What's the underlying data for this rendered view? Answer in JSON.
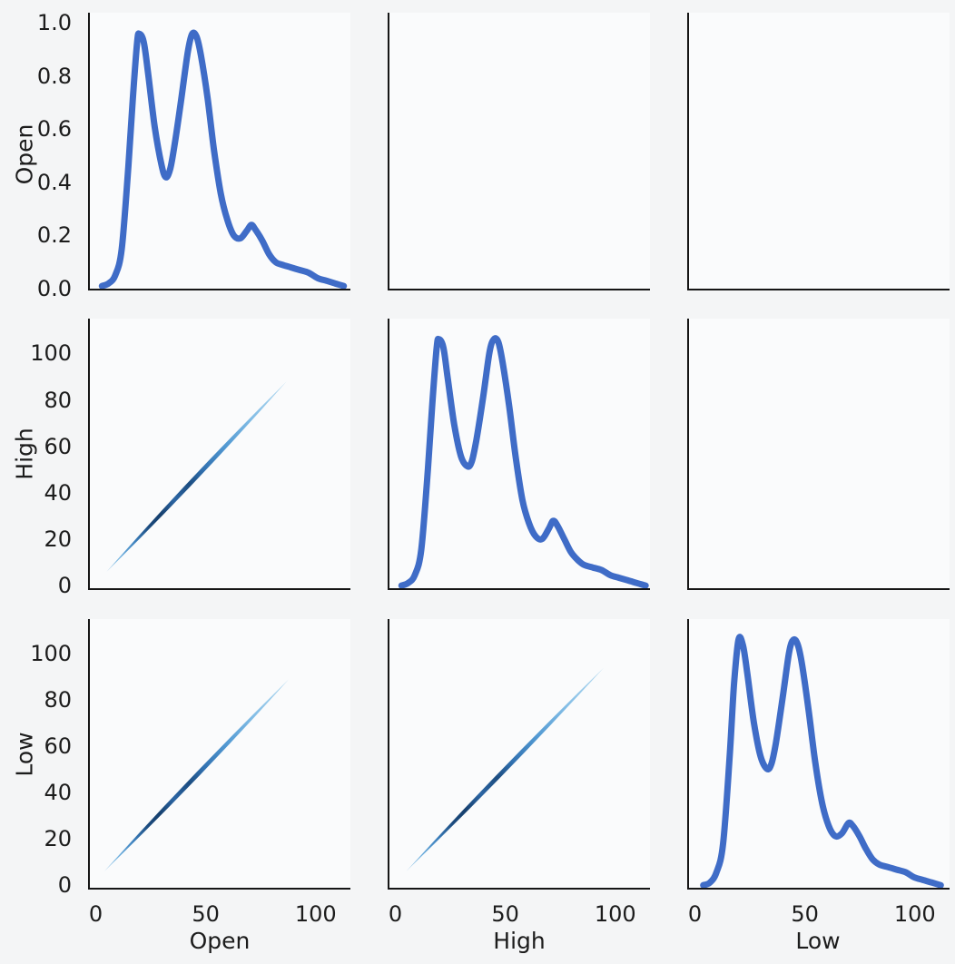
{
  "chart_data": {
    "type": "pairgrid",
    "title": "",
    "variables": [
      "Open",
      "High",
      "Low"
    ],
    "row_labels": [
      "Open",
      "High",
      "Low"
    ],
    "col_labels": [
      "Open",
      "High",
      "Low"
    ],
    "layout": {
      "rows": 3,
      "cols": 3,
      "diagonal": "kde",
      "lower_triangle": "bivariate-kde-line",
      "upper_triangle": "empty",
      "grid": "off",
      "legend": "none",
      "spines": [
        "left",
        "bottom"
      ]
    },
    "axes": {
      "xlim": [
        -2.5,
        116
      ],
      "value_ylim": [
        -2,
        114
      ],
      "density_ylim": [
        -0.01,
        1.03
      ],
      "x_ticks": [
        0,
        50,
        100
      ],
      "x_tick_labels": [
        "0",
        "50",
        "100"
      ],
      "value_y_ticks": [
        0,
        20,
        40,
        60,
        80,
        100
      ],
      "value_y_tick_labels": [
        "0",
        "20",
        "40",
        "60",
        "80",
        "100"
      ],
      "density_y_ticks": [
        0.0,
        0.2,
        0.4,
        0.6,
        0.8,
        1.0
      ],
      "density_y_tick_labels": [
        "0.0",
        "0.2",
        "0.4",
        "0.6",
        "0.8",
        "1.0"
      ]
    },
    "colors": {
      "kde_line": "#3f6cc7",
      "spine": "#161616",
      "text": "#1c1c1c",
      "figure_background": "#f4f5f6",
      "axes_background": "#fafbfc",
      "kde2d_gradient": [
        [
          0.0,
          "#add4ed"
        ],
        [
          0.08,
          "#6fb0de"
        ],
        [
          0.16,
          "#3c80bd"
        ],
        [
          0.24,
          "#1b4a7d"
        ],
        [
          0.3,
          "#16406e"
        ],
        [
          0.38,
          "#2c66a4"
        ],
        [
          0.46,
          "#1c4d81"
        ],
        [
          0.54,
          "#3272b1"
        ],
        [
          0.66,
          "#5299d2"
        ],
        [
          0.8,
          "#81bce5"
        ],
        [
          1.0,
          "#b8dcf1"
        ]
      ]
    },
    "kde_curves": {
      "Open": {
        "x": [
          3,
          6,
          9,
          12,
          15,
          17,
          19,
          20,
          22,
          24,
          27,
          30,
          32,
          34,
          36,
          39,
          42,
          44,
          46,
          48,
          51,
          54,
          57,
          60,
          63,
          66,
          69,
          71,
          73,
          76,
          79,
          82,
          85,
          89,
          93,
          97,
          101,
          105,
          109,
          113
        ],
        "density": [
          0,
          0.01,
          0.04,
          0.14,
          0.45,
          0.7,
          0.92,
          0.95,
          0.92,
          0.8,
          0.6,
          0.46,
          0.41,
          0.44,
          0.53,
          0.7,
          0.88,
          0.95,
          0.94,
          0.87,
          0.71,
          0.51,
          0.35,
          0.25,
          0.19,
          0.18,
          0.21,
          0.23,
          0.21,
          0.17,
          0.12,
          0.09,
          0.08,
          0.07,
          0.06,
          0.05,
          0.03,
          0.02,
          0.01,
          0
        ]
      },
      "High": {
        "x": [
          3,
          6,
          9,
          12,
          15,
          17,
          19,
          20,
          22,
          24,
          27,
          30,
          33,
          35,
          37,
          40,
          43,
          45,
          47,
          49,
          52,
          55,
          58,
          61,
          64,
          67,
          70,
          72,
          74,
          77,
          80,
          83,
          86,
          90,
          94,
          98,
          102,
          106,
          110,
          114
        ],
        "density": [
          0,
          0.01,
          0.04,
          0.14,
          0.45,
          0.7,
          0.92,
          0.95,
          0.92,
          0.8,
          0.62,
          0.5,
          0.46,
          0.48,
          0.56,
          0.72,
          0.9,
          0.95,
          0.94,
          0.86,
          0.69,
          0.49,
          0.33,
          0.24,
          0.19,
          0.18,
          0.22,
          0.25,
          0.23,
          0.18,
          0.13,
          0.1,
          0.08,
          0.07,
          0.06,
          0.04,
          0.03,
          0.02,
          0.01,
          0
        ]
      },
      "Low": {
        "x": [
          4,
          7,
          10,
          13,
          16,
          18,
          20,
          22,
          24,
          27,
          30,
          33,
          35,
          37,
          40,
          43,
          45,
          47,
          49,
          52,
          55,
          58,
          61,
          64,
          67,
          70,
          72,
          75,
          78,
          81,
          84,
          88,
          92,
          96,
          100,
          104,
          108,
          112
        ],
        "density": [
          0,
          0.01,
          0.05,
          0.16,
          0.5,
          0.78,
          0.95,
          0.93,
          0.82,
          0.63,
          0.5,
          0.45,
          0.47,
          0.55,
          0.72,
          0.9,
          0.95,
          0.93,
          0.85,
          0.67,
          0.47,
          0.32,
          0.23,
          0.19,
          0.2,
          0.24,
          0.23,
          0.19,
          0.14,
          0.1,
          0.08,
          0.07,
          0.06,
          0.05,
          0.03,
          0.02,
          0.01,
          0
        ]
      }
    },
    "kde2d_lines": {
      "high_vs_open": {
        "x_var": "Open",
        "y_var": "High",
        "from": [
          5,
          5
        ],
        "to": [
          87,
          87
        ]
      },
      "low_vs_open": {
        "x_var": "Open",
        "y_var": "Low",
        "from": [
          4,
          5
        ],
        "to": [
          88,
          88
        ]
      },
      "low_vs_high": {
        "x_var": "High",
        "y_var": "Low",
        "from": [
          5,
          5
        ],
        "to": [
          95,
          93
        ]
      }
    },
    "panels": [
      {
        "kind": "kde",
        "var": "Open"
      },
      {
        "kind": "empty"
      },
      {
        "kind": "empty"
      },
      {
        "kind": "kde2d",
        "line": "high_vs_open"
      },
      {
        "kind": "kde",
        "var": "High"
      },
      {
        "kind": "empty"
      },
      {
        "kind": "kde2d",
        "line": "low_vs_open"
      },
      {
        "kind": "kde2d",
        "line": "low_vs_high"
      },
      {
        "kind": "kde",
        "var": "Low"
      }
    ]
  }
}
